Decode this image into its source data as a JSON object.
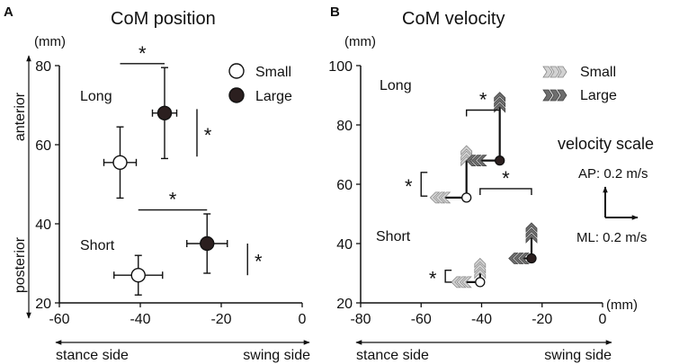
{
  "chart_data": [
    {
      "panel": "A",
      "type": "scatter",
      "title": "CoM position",
      "units": "(mm)",
      "x_ticks": [
        -60,
        -40,
        -20,
        0
      ],
      "y_ticks": [
        20,
        40,
        60,
        80
      ],
      "xlim": [
        -60,
        0
      ],
      "ylim": [
        20,
        80
      ],
      "y_axis_top_label": "anterior",
      "y_axis_bottom_label": "posterior",
      "x_axis_left_label": "stance side",
      "x_axis_right_label": "swing side",
      "legend": [
        {
          "label": "Small",
          "fill": "#ffffff"
        },
        {
          "label": "Large",
          "fill": "#2b1f1f"
        }
      ],
      "groups": [
        {
          "label": "Long",
          "points": [
            {
              "series": "Small",
              "x": -45,
              "y": 55.5,
              "x_err": 4,
              "y_err": 9
            },
            {
              "series": "Large",
              "x": -34,
              "y": 68,
              "x_err": 3,
              "y_err": 11.5
            }
          ]
        },
        {
          "label": "Short",
          "points": [
            {
              "series": "Small",
              "x": -40.5,
              "y": 27,
              "x_err": 6,
              "y_err": 5
            },
            {
              "series": "Large",
              "x": -23.5,
              "y": 35,
              "x_err": 5,
              "y_err": 7.5
            }
          ]
        }
      ],
      "significance": [
        {
          "label": "*",
          "orientation": "horizontal",
          "from": -45,
          "to": -34,
          "at": 80.5
        },
        {
          "label": "*",
          "orientation": "vertical",
          "from": 57,
          "to": 69,
          "at": -26
        },
        {
          "label": "*",
          "orientation": "horizontal",
          "from": -40.5,
          "to": -23.5,
          "at": 43.5
        },
        {
          "label": "*",
          "orientation": "vertical",
          "from": 27,
          "to": 35,
          "at": -13.5
        }
      ]
    },
    {
      "panel": "B",
      "type": "scatter",
      "title": "CoM velocity",
      "units": "(mm)",
      "x_ticks": [
        -80,
        -60,
        -40,
        -20,
        0
      ],
      "y_ticks": [
        20,
        40,
        60,
        80,
        100
      ],
      "xlim": [
        -80,
        0
      ],
      "ylim": [
        20,
        100
      ],
      "x_axis_end_label": "(mm)",
      "x_axis_left_label": "stance side",
      "x_axis_right_label": "swing side",
      "legend": [
        {
          "label": "Small",
          "fill": "#d2d2d2"
        },
        {
          "label": "Large",
          "fill": "#6e6e6e"
        }
      ],
      "velocity_scale": {
        "title": "velocity scale",
        "ap_label": "AP: 0.2 m/s",
        "ml_label": "ML: 0.2 m/s"
      },
      "groups": [
        {
          "label": "Long",
          "vectors": [
            {
              "series": "Small",
              "x": -45,
              "y": 55.5,
              "ml_tip_x": -57,
              "ap_tip_y": 73
            },
            {
              "series": "Large",
              "x": -34,
              "y": 68,
              "ml_tip_x": -45,
              "ap_tip_y": 91
            }
          ]
        },
        {
          "label": "Short",
          "vectors": [
            {
              "series": "Small",
              "x": -40.5,
              "y": 27,
              "ml_tip_x": -50,
              "ap_tip_y": 35
            },
            {
              "series": "Large",
              "x": -23.5,
              "y": 35,
              "ml_tip_x": -31,
              "ap_tip_y": 47
            }
          ]
        }
      ],
      "significance": [
        {
          "label": "*",
          "orientation": "horizontal",
          "from": -45,
          "to": -34,
          "at": 85
        },
        {
          "label": "*",
          "orientation": "vertical",
          "from": 56,
          "to": 64,
          "at": -60
        },
        {
          "label": "*",
          "orientation": "horizontal",
          "from": -40.5,
          "to": -23.5,
          "at": 58.5
        },
        {
          "label": "*",
          "orientation": "vertical",
          "from": 27,
          "to": 31,
          "at": -52
        }
      ]
    }
  ]
}
